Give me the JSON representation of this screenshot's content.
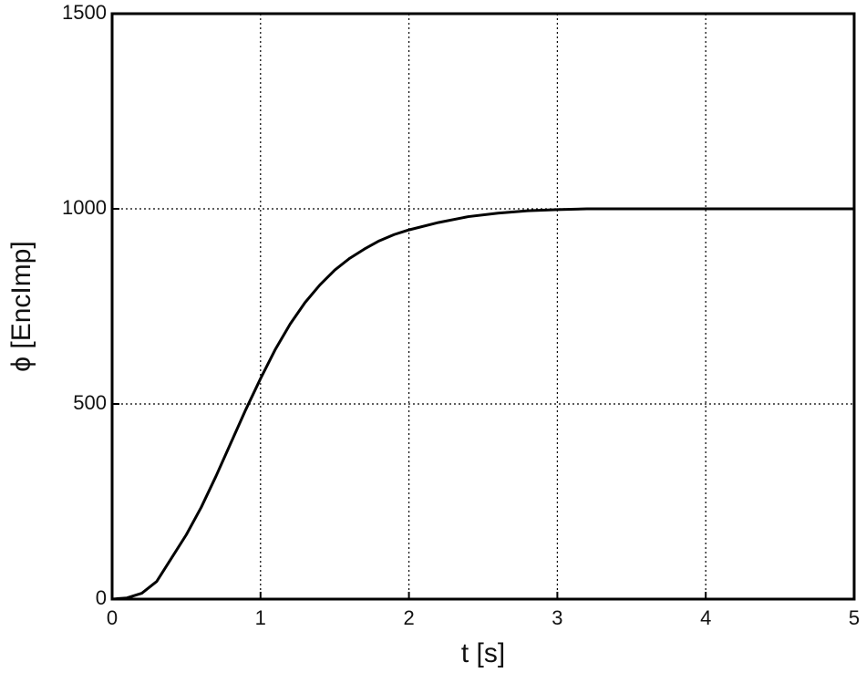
{
  "chart_data": {
    "type": "line",
    "xlabel": "t [s]",
    "ylabel": "ϕ [EncImp]",
    "x": [
      0,
      0.1,
      0.2,
      0.3,
      0.4,
      0.5,
      0.6,
      0.7,
      0.8,
      0.9,
      1.0,
      1.1,
      1.2,
      1.3,
      1.4,
      1.5,
      1.6,
      1.7,
      1.8,
      1.9,
      2.0,
      2.2,
      2.4,
      2.6,
      2.8,
      3.0,
      3.2,
      4.0,
      5.0
    ],
    "series": [
      {
        "color": "#000000",
        "values": [
          0,
          3,
          15,
          45,
          105,
          165,
          235,
          315,
          400,
          485,
          565,
          640,
          705,
          760,
          805,
          843,
          873,
          897,
          918,
          934,
          946,
          965,
          980,
          989,
          995,
          998,
          1000,
          1000,
          1000
        ]
      }
    ],
    "xlim": [
      0,
      5
    ],
    "ylim": [
      0,
      1500
    ],
    "xticks": [
      0,
      1,
      2,
      3,
      4,
      5
    ],
    "yticks": [
      0,
      500,
      1000,
      1500
    ],
    "grid": true
  }
}
